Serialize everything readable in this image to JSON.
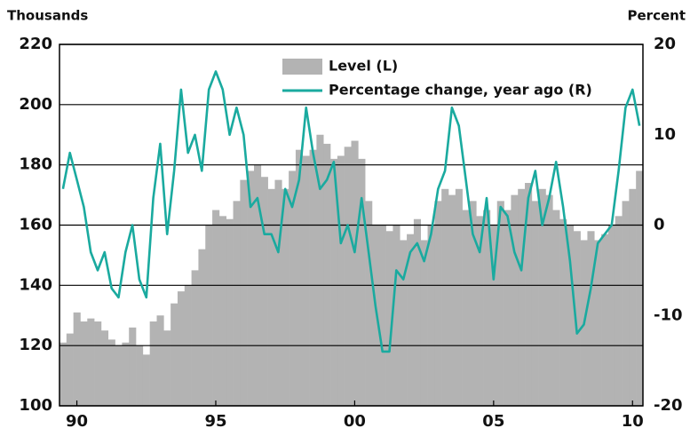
{
  "chart_data": {
    "type": "combo",
    "y_axis_label": "Thousands",
    "y2_axis_label": "Percent",
    "categories": [
      null,
      null,
      "90",
      null,
      null,
      null,
      null,
      null,
      null,
      null,
      null,
      null,
      null,
      null,
      null,
      null,
      null,
      null,
      null,
      null,
      null,
      null,
      "95",
      null,
      null,
      null,
      null,
      null,
      null,
      null,
      null,
      null,
      null,
      null,
      null,
      null,
      null,
      null,
      null,
      null,
      null,
      null,
      "00",
      null,
      null,
      null,
      null,
      null,
      null,
      null,
      null,
      null,
      null,
      null,
      null,
      null,
      null,
      null,
      null,
      null,
      null,
      null,
      "05",
      null,
      null,
      null,
      null,
      null,
      null,
      null,
      null,
      null,
      null,
      null,
      null,
      null,
      null,
      null,
      null,
      null,
      null,
      null,
      "10",
      null
    ],
    "series": [
      {
        "name": "Level (L)",
        "type": "bar",
        "color": "#b3b3b3",
        "values": [
          121,
          124,
          131,
          128,
          129,
          128,
          125,
          122,
          120,
          121,
          126,
          120,
          117,
          128,
          130,
          125,
          134,
          138,
          140,
          145,
          152,
          160,
          165,
          163,
          162,
          168,
          175,
          178,
          180,
          176,
          172,
          175,
          172,
          178,
          185,
          183,
          185,
          190,
          187,
          182,
          183,
          186,
          188,
          182,
          168,
          160,
          160,
          158,
          160,
          155,
          157,
          162,
          155,
          160,
          168,
          172,
          170,
          172,
          165,
          168,
          163,
          165,
          160,
          168,
          165,
          170,
          172,
          174,
          168,
          172,
          170,
          165,
          162,
          160,
          158,
          155,
          158,
          155,
          157,
          160,
          163,
          168,
          172,
          178
        ]
      },
      {
        "name": "Percentage change, year ago (R)",
        "type": "line",
        "axis": "y2",
        "color": "#1aaa9f",
        "values": [
          4,
          8,
          5,
          2,
          -3,
          -5,
          -3,
          -7,
          -8,
          -3,
          0,
          -6,
          -8,
          3,
          9,
          -1,
          6,
          15,
          8,
          10,
          6,
          15,
          17,
          15,
          10,
          13,
          10,
          2,
          3,
          -1,
          -1,
          -3,
          4,
          2,
          5,
          13,
          8,
          4,
          5,
          7,
          -2,
          0,
          -3,
          3,
          -3,
          -9,
          -14,
          -14,
          -5,
          -6,
          -3,
          -2,
          -4,
          -1,
          4,
          6,
          13,
          11,
          5,
          -1,
          -3,
          3,
          -6,
          2,
          1,
          -3,
          -5,
          3,
          6,
          0,
          3,
          7,
          2,
          -4,
          -12,
          -11,
          -7,
          -2,
          -1,
          0,
          6,
          13,
          15,
          11
        ]
      }
    ],
    "ylim": [
      100,
      220
    ],
    "yticks": [
      100,
      120,
      140,
      160,
      180,
      200,
      220
    ],
    "y2lim": [
      -20,
      20
    ],
    "y2ticks": [
      -20,
      -10,
      0,
      10,
      20
    ],
    "grid": true,
    "legend": "top"
  }
}
